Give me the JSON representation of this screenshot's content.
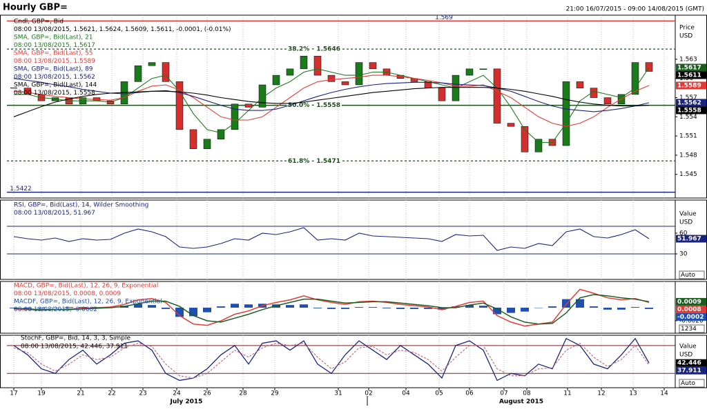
{
  "header": {
    "title": "Hourly GBP=",
    "range": "21:00 16/07/2015 - 09:00 14/08/2015 (GMT)"
  },
  "chart_data": [
    {
      "type": "candlestick",
      "x": [
        0,
        1,
        2,
        3,
        4,
        5,
        6,
        7,
        8,
        9,
        10,
        11,
        12,
        13,
        14,
        15,
        16,
        17,
        18,
        19,
        20,
        21,
        22,
        23,
        24,
        25,
        26,
        27,
        28,
        29,
        30,
        31,
        32,
        33,
        34,
        35,
        36,
        37,
        38,
        39,
        40,
        41,
        42,
        43,
        44,
        45,
        46
      ],
      "xlim": [
        -0.5,
        47.9
      ],
      "xticks": [
        {
          "value": 0,
          "label": "17"
        },
        {
          "value": 2,
          "label": "19"
        },
        {
          "value": 4.85,
          "label": "21"
        },
        {
          "value": 7.1,
          "label": "22"
        },
        {
          "value": 9.35,
          "label": "23"
        },
        {
          "value": 11.8,
          "label": "24"
        },
        {
          "value": 14,
          "label": "26"
        },
        {
          "value": 16.6,
          "label": "28"
        },
        {
          "value": 18.9,
          "label": "29"
        },
        {
          "value": 23.5,
          "label": "31"
        },
        {
          "value": 25.7,
          "label": "02"
        },
        {
          "value": 28.4,
          "label": "04"
        },
        {
          "value": 30.8,
          "label": "05"
        },
        {
          "value": 33,
          "label": "06"
        },
        {
          "value": 35.5,
          "label": "07"
        },
        {
          "value": 37.15,
          "label": "08"
        },
        {
          "value": 40.1,
          "label": "11"
        },
        {
          "value": 42.55,
          "label": "12"
        },
        {
          "value": 44.85,
          "label": "13"
        },
        {
          "value": 47.1,
          "label": "14"
        }
      ],
      "months": [
        {
          "value": 12.5,
          "label": "July 2015"
        },
        {
          "value": 36.75,
          "label": "August 2015"
        }
      ],
      "month_separator": 25.6,
      "grid": true,
      "ylim": [
        1.5413,
        1.5699
      ],
      "yticks": [
        1.545,
        1.548,
        1.551,
        1.554,
        1.557,
        1.56,
        1.563
      ],
      "unit_labels": [
        "Price",
        "USD"
      ],
      "up_color": "#1b7a1b",
      "down_color": "#d32f2f",
      "levels": [
        1.569,
        {
          "value": 1.5646,
          "label": "38.2% - 1.5646"
        },
        {
          "value": 1.5558,
          "label": "50.0% - 1.5558"
        },
        {
          "value": 1.5471,
          "label": "61.8% - 1.5471"
        },
        1.5422
      ],
      "level_colors": [
        "#e53935",
        "#1b4d1b",
        "#1b4d1b",
        "#1b4d1b",
        "#1a237e"
      ],
      "level_styles": [
        "solid",
        "dashed",
        "solid",
        "dashed",
        "solid"
      ],
      "series": [
        {
          "name": "Cndl, GBP=, Bid",
          "detail": "08:00 13/08/2015, 1.5621, 1.5624, 1.5609, 1.5611, -0.0001, (-0.01%)",
          "color": "#000000",
          "values": [
            1.5585,
            1.5575,
            1.5565,
            1.557,
            1.556,
            1.557,
            1.5565,
            1.556,
            1.5595,
            1.562,
            1.5625,
            1.5595,
            1.552,
            1.549,
            1.5505,
            1.552,
            1.556,
            1.5555,
            1.559,
            1.5605,
            1.5615,
            1.5635,
            1.5605,
            1.5595,
            1.559,
            1.5625,
            1.5615,
            1.5605,
            1.56,
            1.5595,
            1.5585,
            1.5565,
            1.5605,
            1.5615,
            1.5615,
            1.553,
            1.5525,
            1.5485,
            1.5505,
            1.5495,
            1.5595,
            1.5585,
            1.557,
            1.556,
            1.5575,
            1.5625,
            1.5611
          ]
        },
        {
          "name": "SMA, GBP=, Bid(Last), 21",
          "detail": "08:00 13/08/2015, 1.5617",
          "color": "#1b7a1b",
          "values": [
            1.5575,
            1.5575,
            1.557,
            1.5568,
            1.5565,
            1.5565,
            1.5565,
            1.5563,
            1.557,
            1.5585,
            1.56,
            1.5605,
            1.558,
            1.5545,
            1.552,
            1.5515,
            1.553,
            1.555,
            1.557,
            1.5585,
            1.5595,
            1.561,
            1.5615,
            1.561,
            1.5605,
            1.5605,
            1.561,
            1.561,
            1.5605,
            1.56,
            1.5595,
            1.559,
            1.5585,
            1.5595,
            1.5605,
            1.5585,
            1.5555,
            1.552,
            1.55,
            1.55,
            1.553,
            1.5565,
            1.558,
            1.5575,
            1.557,
            1.5585,
            1.5617
          ]
        },
        {
          "name": "SMA, GBP=, Bid(Last), 55",
          "detail": "08:00 13/08/2015, 1.5589",
          "color": "#e53935",
          "values": [
            1.558,
            1.5578,
            1.5575,
            1.5572,
            1.557,
            1.5568,
            1.5567,
            1.5566,
            1.557,
            1.558,
            1.5588,
            1.559,
            1.5582,
            1.557,
            1.5555,
            1.554,
            1.5535,
            1.5535,
            1.554,
            1.5555,
            1.557,
            1.5585,
            1.5595,
            1.5598,
            1.56,
            1.5602,
            1.5605,
            1.5605,
            1.5603,
            1.56,
            1.5597,
            1.5593,
            1.5588,
            1.5588,
            1.559,
            1.558,
            1.557,
            1.5555,
            1.554,
            1.553,
            1.5525,
            1.553,
            1.554,
            1.5555,
            1.5568,
            1.558,
            1.5589
          ]
        },
        {
          "name": "SMA, GBP=, Bid(Last), 89",
          "detail": "08:00 13/08/2015, 1.5562",
          "color": "#1a237e",
          "values": [
            1.56,
            1.5597,
            1.5594,
            1.559,
            1.5587,
            1.5583,
            1.558,
            1.5577,
            1.5576,
            1.5578,
            1.558,
            1.5581,
            1.5578,
            1.5572,
            1.5565,
            1.5558,
            1.5552,
            1.555,
            1.555,
            1.5552,
            1.5558,
            1.5565,
            1.5572,
            1.5578,
            1.5583,
            1.5587,
            1.559,
            1.5592,
            1.5593,
            1.5594,
            1.5594,
            1.5593,
            1.5591,
            1.559,
            1.5589,
            1.5585,
            1.558,
            1.5572,
            1.5564,
            1.5557,
            1.5552,
            1.555,
            1.5548,
            1.555,
            1.5553,
            1.5557,
            1.5562
          ]
        },
        {
          "name": "SMA, GBP=, Bid(Last), 144",
          "detail": "08:00 13/08/2015, 1.5558",
          "color": "#000000",
          "values": [
            1.554,
            1.5548,
            1.5556,
            1.5563,
            1.5568,
            1.5572,
            1.5575,
            1.5577,
            1.5578,
            1.5579,
            1.558,
            1.558,
            1.5579,
            1.5577,
            1.5574,
            1.557,
            1.5567,
            1.5564,
            1.5562,
            1.5561,
            1.5561,
            1.5563,
            1.5566,
            1.5569,
            1.5572,
            1.5575,
            1.5578,
            1.558,
            1.5582,
            1.5584,
            1.5585,
            1.5586,
            1.5586,
            1.5586,
            1.5586,
            1.5585,
            1.5583,
            1.558,
            1.5576,
            1.5572,
            1.5567,
            1.5563,
            1.556,
            1.5558,
            1.5557,
            1.5557,
            1.5558
          ]
        }
      ]
    },
    {
      "type": "line",
      "ylim": [
        -7,
        108
      ],
      "yticks": [
        30,
        60
      ],
      "bands": [
        30,
        70
      ],
      "band_color": "#1a237e",
      "unit_labels": [
        "Value",
        "USD"
      ],
      "button": "Auto",
      "series": [
        {
          "name": "RSI, GBP=, Bid(Last), 14, Wilder Smoothing",
          "detail": "08:00 13/08/2015, 51.967",
          "color": "#1a237e",
          "values": [
            55,
            52,
            50,
            53,
            48,
            52,
            50,
            51,
            60,
            66,
            62,
            55,
            40,
            38,
            40,
            45,
            52,
            50,
            60,
            58,
            62,
            68,
            50,
            52,
            50,
            60,
            56,
            55,
            54,
            53,
            52,
            48,
            58,
            56,
            57,
            35,
            40,
            38,
            45,
            42,
            62,
            66,
            55,
            53,
            58,
            65,
            51.967
          ]
        }
      ]
    },
    {
      "type": "macd",
      "ylim": [
        -0.0039,
        0.004
      ],
      "yticks": [
        {
          "value": -0.002,
          "label": "-0.0020"
        }
      ],
      "button": "1234",
      "series": [
        {
          "name": "MACD, GBP=, Bid(Last), 12, 26, 9, Exponential",
          "detail": "08:00 13/08/2015, 0.0008, 0.0009",
          "color": "#e53935",
          "values": [
            -0.0002,
            -0.0003,
            -0.0004,
            -0.0003,
            -0.0002,
            -0.0001,
            0,
            0.0001,
            0.0005,
            0.0012,
            0.0014,
            0.0008,
            -0.0012,
            -0.0025,
            -0.0027,
            -0.002,
            -0.001,
            -0.0005,
            0.0003,
            0.0008,
            0.0012,
            0.0018,
            0.0012,
            0.0008,
            0.0005,
            0.0009,
            0.001,
            0.0008,
            0.0005,
            0.0003,
            0.0001,
            -0.0003,
            0.0002,
            0.0008,
            0.001,
            -0.0012,
            -0.0022,
            -0.0028,
            -0.0025,
            -0.0022,
            0.0005,
            0.0028,
            0.0022,
            0.0015,
            0.0012,
            0.0014,
            0.0008
          ]
        },
        {
          "name": "MACDF, GBP=, Bid(Last), 12, 26, 9, Exponential",
          "detail": "08:00 13/08/2015, -0.0002",
          "color": "#1f4fb0",
          "values": [
            -0.0001,
            -0.0001,
            -0.0001,
            0,
            0.0001,
            0.0001,
            0.0001,
            0.0001,
            0.0003,
            0.0006,
            0.0004,
            -0.0002,
            -0.0014,
            -0.0013,
            -0.0007,
            0.0002,
            0.0006,
            0.0005,
            0.0006,
            0.0005,
            0.0004,
            0.0005,
            -0.0001,
            -0.0002,
            -0.0002,
            0.0001,
            0.0001,
            -0.0001,
            -0.0002,
            -0.0002,
            -0.0002,
            -0.0003,
            0.0002,
            0.0004,
            0.0003,
            -0.001,
            -0.0008,
            -0.0006,
            0,
            0.0002,
            0.0013,
            0.0013,
            0.0002,
            -0.0003,
            -0.0003,
            0.0001,
            -0.0002
          ]
        }
      ],
      "signal": {
        "color": "#1b5e20",
        "values": [
          -0.0001,
          -0.0002,
          -0.0003,
          -0.0003,
          -0.0003,
          -0.0002,
          -0.0001,
          0,
          0.0002,
          0.0006,
          0.001,
          0.001,
          0.0002,
          -0.0012,
          -0.002,
          -0.0022,
          -0.0016,
          -0.001,
          -0.0003,
          0.0003,
          0.0008,
          0.0013,
          0.0013,
          0.001,
          0.0007,
          0.0008,
          0.0009,
          0.0009,
          0.0007,
          0.0005,
          0.0003,
          0,
          0,
          0.0004,
          0.0007,
          -0.0002,
          -0.0014,
          -0.0022,
          -0.0025,
          -0.0024,
          -0.0008,
          0.0015,
          0.002,
          0.0018,
          0.0015,
          0.0013,
          0.0009
        ]
      }
    },
    {
      "type": "stochastic",
      "ylim": [
        -10.7,
        102
      ],
      "bands": [
        20,
        80
      ],
      "band_color": "#7b1f1f",
      "unit_labels": [
        "Value",
        "USD"
      ],
      "button": "Auto",
      "series": [
        {
          "name": "StochF, GBP=, Bid, 14, 3, 3, Simple",
          "detail": "08:00 13/08/2015, 42.446, 37.911",
          "color": "#1a237e",
          "values": [
            80,
            60,
            30,
            20,
            50,
            70,
            40,
            60,
            85,
            90,
            70,
            20,
            5,
            10,
            30,
            60,
            80,
            40,
            85,
            90,
            70,
            90,
            40,
            20,
            60,
            90,
            70,
            50,
            80,
            60,
            40,
            10,
            80,
            90,
            70,
            5,
            20,
            15,
            40,
            30,
            95,
            80,
            40,
            30,
            60,
            95,
            42.446
          ]
        }
      ],
      "signal": {
        "color": "#c0607a",
        "dashed": true,
        "values": [
          75,
          65,
          40,
          25,
          40,
          60,
          50,
          55,
          75,
          85,
          78,
          40,
          15,
          10,
          20,
          45,
          70,
          55,
          75,
          85,
          80,
          85,
          55,
          30,
          45,
          75,
          78,
          60,
          70,
          65,
          50,
          25,
          55,
          80,
          80,
          30,
          15,
          15,
          30,
          32,
          70,
          85,
          55,
          35,
          50,
          80,
          37.911
        ]
      }
    }
  ]
}
